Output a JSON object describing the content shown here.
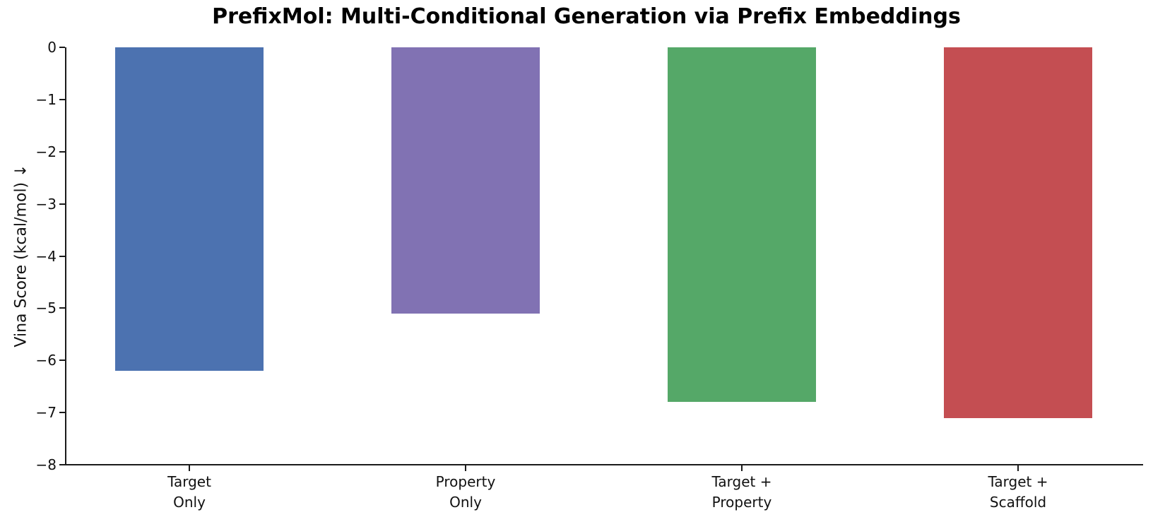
{
  "chart_data": {
    "type": "bar",
    "title": "PrefixMol: Multi-Conditional Generation via Prefix Embeddings",
    "categories": [
      "Target\nOnly",
      "Property\nOnly",
      "Target +\nProperty",
      "Target +\nScaffold"
    ],
    "values": [
      -6.2,
      -5.1,
      -6.8,
      -7.1
    ],
    "bar_colors": [
      "#4C72B0",
      "#8172B3",
      "#55A868",
      "#C44E52"
    ],
    "xlabel": "",
    "ylabel": "Vina Score (kcal/mol) ↓",
    "ylim": [
      -8,
      0
    ],
    "yticks": [
      0,
      -1,
      -2,
      -3,
      -4,
      -5,
      -6,
      -7,
      -8
    ],
    "grid": false,
    "legend_position": "none",
    "bar_baseline": 0,
    "orientation": "vertical",
    "background_color": "#ffffff",
    "axis_color": "#1a1a1a"
  }
}
